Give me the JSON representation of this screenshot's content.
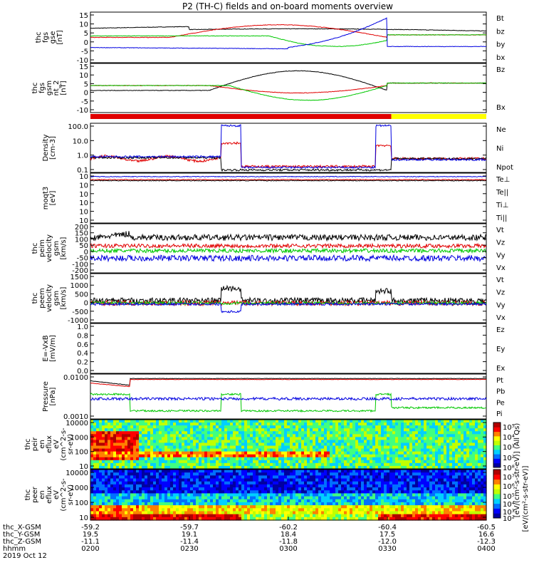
{
  "title": "P2 (TH-C) fields and on-board moments overview",
  "colors": {
    "black": "#000000",
    "red": "#e00000",
    "green": "#00c800",
    "blue": "#0000e0",
    "yellow": "#ffff00"
  },
  "chart_data": [
    {
      "type": "line",
      "ylabel": [
        "thc",
        "fgs",
        "gse",
        "[nT]"
      ],
      "ylim": [
        -15,
        15
      ],
      "yticks": [
        "15",
        "10",
        "5",
        "0",
        "-5",
        "-10"
      ],
      "series": [
        {
          "name": "Bt",
          "color": "black"
        },
        {
          "name": "bz",
          "color": "red"
        },
        {
          "name": "by",
          "color": "green"
        },
        {
          "name": "bx",
          "color": "blue"
        }
      ]
    },
    {
      "type": "line",
      "ylabel": [
        "thc",
        "fgs",
        "gsm",
        "nt_2",
        "[nT]"
      ],
      "ylim": [
        -15,
        15
      ],
      "yticks": [
        "15",
        "10",
        "5",
        "0",
        "-5",
        "-10"
      ],
      "series": [
        {
          "name": "Bz",
          "color": "red"
        },
        {
          "name": "Bx",
          "color": "black"
        }
      ]
    },
    {
      "type": "bar",
      "name": "mode-bar",
      "segments": [
        {
          "from": "0200",
          "to": "0330",
          "color": "red"
        },
        {
          "from": "0330",
          "to": "0400",
          "color": "yellow"
        }
      ]
    },
    {
      "type": "line",
      "ylabel": [
        "Density",
        "[cm-3]"
      ],
      "scale": "log",
      "yticks": [
        "100.0",
        "10.0",
        "1.0",
        "0.1"
      ],
      "series": [
        {
          "name": "Ne",
          "color": "red"
        },
        {
          "name": "Ni",
          "color": "black"
        },
        {
          "name": "Npot",
          "color": "blue"
        }
      ]
    },
    {
      "type": "line",
      "ylabel": [
        "moqt3",
        "[eV]"
      ],
      "scale": "log",
      "yticks": [
        "10",
        "10",
        "10",
        "10",
        "10",
        "10"
      ],
      "series": [
        {
          "name": "Te⊥",
          "color": "red"
        },
        {
          "name": "Te||",
          "color": "black"
        },
        {
          "name": "Ti⊥",
          "color": "green"
        },
        {
          "name": "Ti||",
          "color": "green"
        }
      ]
    },
    {
      "type": "line",
      "ylabel": [
        "thc",
        "peim",
        "velocity",
        "gsm",
        "[km/s]"
      ],
      "ylim": [
        -200,
        200
      ],
      "yticks": [
        "200",
        "150",
        "100",
        "50",
        "0",
        "-50",
        "-100",
        "-200"
      ],
      "series": [
        {
          "name": "Vt",
          "color": "black"
        },
        {
          "name": "Vz",
          "color": "red"
        },
        {
          "name": "Vy",
          "color": "green"
        },
        {
          "name": "Vx",
          "color": "blue"
        }
      ]
    },
    {
      "type": "line",
      "ylabel": [
        "thc",
        "peem",
        "velocity",
        "gsm",
        "[km/s]"
      ],
      "ylim": [
        -1000,
        1500
      ],
      "yticks": [
        "1500",
        "1000",
        "500",
        "0",
        "-500",
        "-1000"
      ],
      "series": [
        {
          "name": "Vt",
          "color": "black"
        },
        {
          "name": "Vz",
          "color": "red"
        },
        {
          "name": "Vy",
          "color": "green"
        },
        {
          "name": "Vx",
          "color": "blue"
        }
      ]
    },
    {
      "type": "line",
      "ylabel": [
        "E=-VxB",
        "[mV/m]"
      ],
      "ylim": [
        0,
        1
      ],
      "yticks": [
        "1.0",
        "0.8",
        "0.6",
        "0.4",
        "0.2",
        "0.0"
      ],
      "series": [
        {
          "name": "Ez",
          "color": "red"
        },
        {
          "name": "Ey",
          "color": "green"
        },
        {
          "name": "Ex",
          "color": "blue"
        }
      ]
    },
    {
      "type": "line",
      "ylabel": [
        "Pressure",
        "[nPa]"
      ],
      "scale": "log",
      "yticks": [
        "0.0100",
        "0.0010"
      ],
      "series": [
        {
          "name": "Pt",
          "color": "black"
        },
        {
          "name": "Pb",
          "color": "red"
        },
        {
          "name": "Pe",
          "color": "green"
        },
        {
          "name": "Pi",
          "color": "blue"
        }
      ]
    },
    {
      "type": "heatmap",
      "ylabel": [
        "thc",
        "peir",
        "en",
        "eflux",
        "eV",
        "(cm^2-s-",
        "sr-eV)"
      ],
      "yticks": [
        "10000",
        "1000",
        "100",
        "10"
      ]
    },
    {
      "type": "heatmap",
      "ylabel": [
        "thc",
        "peer",
        "en",
        "eflux",
        "eV",
        "(cm^2-s-",
        "sr-eV)"
      ],
      "yticks": [
        "10000",
        "1000",
        "100",
        "10"
      ]
    }
  ],
  "colorbar": {
    "ticks": [
      "10⁵",
      "10⁴",
      "10³",
      "10²",
      "10⁸",
      "10⁷",
      "10⁶",
      "10⁵",
      "10⁴",
      "10³",
      "10²"
    ],
    "label": "[eV/(cm²-s-str-eV)] (All Qs)",
    "label2": "[eV/(cm²-s-str-eV)]"
  },
  "x_axis": {
    "rows": [
      {
        "label": "thc_X-GSM",
        "values": [
          "-59.2",
          "-59.7",
          "-60.2",
          "-60.4",
          "-60.5"
        ]
      },
      {
        "label": "thc_Y-GSM",
        "values": [
          "19.5",
          "19.1",
          "18.4",
          "17.5",
          "16.6"
        ]
      },
      {
        "label": "thc_Z-GSM",
        "values": [
          "-11.1",
          "-11.4",
          "-11.8",
          "-12.0",
          "-12.3"
        ]
      },
      {
        "label": "hhmm",
        "values": [
          "0200",
          "0230",
          "0300",
          "0330",
          "0400"
        ]
      }
    ],
    "date": "2019 Oct 12"
  }
}
